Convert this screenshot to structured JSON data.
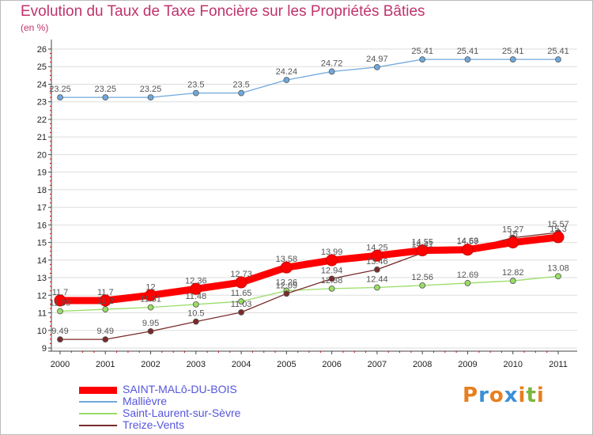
{
  "header": {
    "title": "Evolution du Taux de Taxe Foncière sur les Propriétés Bâties",
    "subtitle": "(en %)"
  },
  "logo": {
    "text": "Proxiti",
    "letter_colors": [
      "#e77f1e",
      "#3b8fd6",
      "#e77f1e",
      "#3b8fd6",
      "#e77f1e",
      "#7ab63d",
      "#e77f1e"
    ]
  },
  "chart_data": {
    "type": "line",
    "title": "Evolution du Taux de Taxe Foncière sur les Propriétés Bâties",
    "ylabel": "(en %)",
    "x": [
      "2000",
      "2001",
      "2002",
      "2003",
      "2004",
      "2005",
      "2006",
      "2007",
      "2008",
      "2009",
      "2010",
      "2011"
    ],
    "ylim": [
      9,
      26
    ],
    "yticks": [
      "9",
      "10",
      "11",
      "12",
      "13",
      "14",
      "15",
      "16",
      "17",
      "18",
      "19",
      "20",
      "21",
      "22",
      "23",
      "24",
      "25",
      "26"
    ],
    "grid": "horizontal",
    "legend_position": "bottom-left",
    "series": [
      {
        "name": "SAINT-MALô-DU-BOIS",
        "color": "#ff0000",
        "values": [
          11.7,
          11.7,
          12,
          12.36,
          12.73,
          13.58,
          13.99,
          14.25,
          14.55,
          14.59,
          15,
          15.3
        ],
        "labels": [
          "11.7",
          "11.7",
          "12",
          "12.36",
          "12.73",
          "13.58",
          "13.99",
          "14.25",
          "14.55",
          "14.59",
          "15",
          "15.3"
        ]
      },
      {
        "name": "Mallièvre",
        "color": "#6fa8dc",
        "values": [
          23.25,
          23.25,
          23.25,
          23.5,
          23.5,
          24.24,
          24.72,
          24.97,
          25.41,
          25.41,
          25.41,
          25.41
        ],
        "labels": [
          "23.25",
          "23.25",
          "23.25",
          "23.5",
          "23.5",
          "24.24",
          "24.72",
          "24.97",
          "25.41",
          "25.41",
          "25.41",
          "25.41"
        ]
      },
      {
        "name": "Saint-Laurent-sur-Sèvre",
        "color": "#99dd66",
        "values": [
          11.09,
          11.2,
          11.31,
          11.48,
          11.65,
          12.26,
          12.38,
          12.44,
          12.56,
          12.69,
          12.82,
          13.08
        ],
        "labels": [
          "11.09",
          "11.2",
          "11.31",
          "11.48",
          "11.65",
          "12.26",
          "12.38",
          "12.44",
          "12.56",
          "12.69",
          "12.82",
          "13.08"
        ]
      },
      {
        "name": "Treize-Vents",
        "color": "#7a2a2a",
        "values": [
          9.49,
          9.49,
          9.95,
          10.5,
          11.03,
          12.09,
          12.94,
          13.46,
          14.41,
          14.63,
          15.27,
          15.57
        ],
        "labels": [
          "9.49",
          "9.49",
          "9.95",
          "10.5",
          "11.03",
          "12.09",
          "12.94",
          "13.46",
          "14.41",
          "14.63",
          "15.27",
          "15.57"
        ]
      }
    ]
  }
}
